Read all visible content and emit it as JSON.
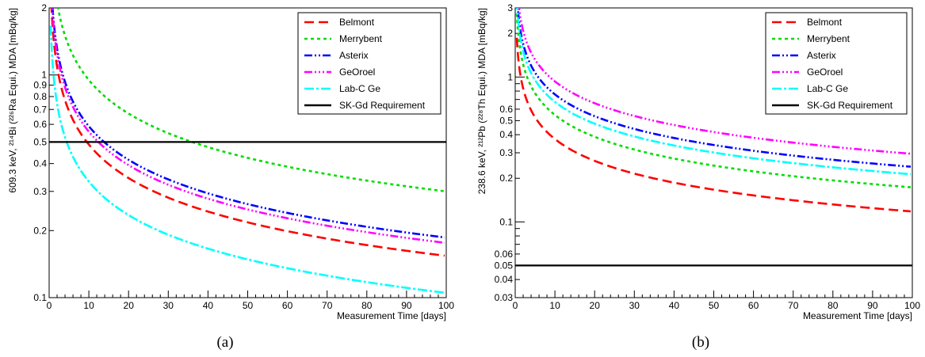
{
  "chart_data": [
    {
      "type": "line",
      "caption": "(a)",
      "xlabel": "Measurement Time [days]",
      "ylabel": "609.3 keV, ²¹⁴Bi (²²⁶Ra Equi.) MDA [mBq/kg]",
      "xlim": [
        0,
        100
      ],
      "ylim": [
        0.1,
        2
      ],
      "yscale": "log",
      "legend_position": "top-right",
      "x_ticks": [
        "0",
        "10",
        "20",
        "30",
        "40",
        "50",
        "60",
        "70",
        "80",
        "90",
        "100"
      ],
      "y_ticks": [
        {
          "value": 0.1,
          "label": "0.1"
        },
        {
          "value": 0.2,
          "label": "0.2"
        },
        {
          "value": 0.3,
          "label": "0.3"
        },
        {
          "value": 0.4,
          "label": "0.4"
        },
        {
          "value": 0.5,
          "label": "0.5"
        },
        {
          "value": 0.6,
          "label": "0.6"
        },
        {
          "value": 0.7,
          "label": "0.7"
        },
        {
          "value": 0.8,
          "label": "0.8"
        },
        {
          "value": 0.9,
          "label": "0.9"
        },
        {
          "value": 1,
          "label": "1"
        },
        {
          "value": 2,
          "label": "2"
        }
      ],
      "series": [
        {
          "name": "Belmont",
          "color": "#ff0000",
          "dash": "12,6",
          "x": [
            1,
            2,
            5,
            10,
            20,
            30,
            40,
            50,
            60,
            70,
            80,
            90,
            100
          ],
          "y": [
            1.54,
            1.09,
            0.69,
            0.49,
            0.345,
            0.28,
            0.245,
            0.22,
            0.2,
            0.185,
            0.172,
            0.162,
            0.154
          ]
        },
        {
          "name": "Merrybent",
          "color": "#00dd00",
          "dash": "4,4",
          "x": [
            1,
            2,
            5,
            10,
            20,
            30,
            40,
            50,
            60,
            70,
            80,
            90,
            100
          ],
          "y": [
            3.0,
            2.12,
            1.34,
            0.95,
            0.67,
            0.55,
            0.475,
            0.425,
            0.39,
            0.36,
            0.335,
            0.317,
            0.3
          ]
        },
        {
          "name": "Asterix",
          "color": "#0000ff",
          "dash": "10,3,2,3,2,3",
          "x": [
            1,
            2,
            5,
            10,
            20,
            30,
            40,
            50,
            60,
            70,
            80,
            90,
            100
          ],
          "y": [
            1.86,
            1.32,
            0.83,
            0.59,
            0.415,
            0.34,
            0.295,
            0.263,
            0.24,
            0.222,
            0.208,
            0.196,
            0.186
          ]
        },
        {
          "name": "GeOroel",
          "color": "#ff00ff",
          "dash": "10,3,2,3,2,3,2,3",
          "x": [
            1,
            2,
            5,
            10,
            20,
            30,
            40,
            50,
            60,
            70,
            80,
            90,
            100
          ],
          "y": [
            1.76,
            1.24,
            0.79,
            0.56,
            0.395,
            0.322,
            0.279,
            0.25,
            0.228,
            0.211,
            0.197,
            0.186,
            0.176
          ]
        },
        {
          "name": "Lab-C Ge",
          "color": "#00ffff",
          "dash": "12,3,3,3",
          "x": [
            1,
            2,
            5,
            10,
            20,
            30,
            40,
            50,
            60,
            70,
            80,
            90,
            100
          ],
          "y": [
            1.05,
            0.74,
            0.47,
            0.33,
            0.235,
            0.19,
            0.165,
            0.148,
            0.135,
            0.125,
            0.117,
            0.11,
            0.105
          ]
        },
        {
          "name": "SK-Gd Requirement",
          "color": "#000000",
          "dash": "",
          "x": [
            0,
            100
          ],
          "y": [
            0.5,
            0.5
          ]
        }
      ]
    },
    {
      "type": "line",
      "caption": "(b)",
      "xlabel": "Measurement Time [days]",
      "ylabel": "238.6 keV, ²¹²Pb (²²⁸Th Equi.) MDA [mBq/kg]",
      "xlim": [
        0,
        100
      ],
      "ylim": [
        0.03,
        3
      ],
      "yscale": "log",
      "legend_position": "top-right",
      "x_ticks": [
        "0",
        "10",
        "20",
        "30",
        "40",
        "50",
        "60",
        "70",
        "80",
        "90",
        "100"
      ],
      "y_ticks": [
        {
          "value": 0.03,
          "label": "0.03"
        },
        {
          "value": 0.04,
          "label": "0.04"
        },
        {
          "value": 0.05,
          "label": "0.05"
        },
        {
          "value": 0.06,
          "label": "0.06"
        },
        {
          "value": 0.1,
          "label": "0.1"
        },
        {
          "value": 0.2,
          "label": "0.2"
        },
        {
          "value": 0.3,
          "label": "0.3"
        },
        {
          "value": 0.4,
          "label": "0.4"
        },
        {
          "value": 0.5,
          "label": "0.5"
        },
        {
          "value": 0.6,
          "label": "0.6"
        },
        {
          "value": 1,
          "label": "1"
        },
        {
          "value": 2,
          "label": "2"
        },
        {
          "value": 3,
          "label": "3"
        }
      ],
      "series": [
        {
          "name": "Belmont",
          "color": "#ff0000",
          "dash": "12,6",
          "x": [
            1,
            2,
            5,
            10,
            20,
            30,
            40,
            50,
            60,
            70,
            80,
            90,
            100
          ],
          "y": [
            1.18,
            0.84,
            0.53,
            0.375,
            0.265,
            0.217,
            0.188,
            0.168,
            0.153,
            0.142,
            0.133,
            0.125,
            0.118
          ]
        },
        {
          "name": "Merrybent",
          "color": "#00dd00",
          "dash": "4,4",
          "x": [
            1,
            2,
            5,
            10,
            20,
            30,
            40,
            50,
            60,
            70,
            80,
            90,
            100
          ],
          "y": [
            1.73,
            1.22,
            0.775,
            0.548,
            0.388,
            0.316,
            0.274,
            0.245,
            0.224,
            0.207,
            0.194,
            0.183,
            0.173
          ]
        },
        {
          "name": "Asterix",
          "color": "#0000ff",
          "dash": "10,3,2,3,2,3",
          "x": [
            1,
            2,
            5,
            10,
            20,
            30,
            40,
            50,
            60,
            70,
            80,
            90,
            100
          ],
          "y": [
            2.4,
            1.7,
            1.07,
            0.76,
            0.537,
            0.438,
            0.38,
            0.34,
            0.31,
            0.287,
            0.268,
            0.253,
            0.24
          ]
        },
        {
          "name": "GeOroel",
          "color": "#ff00ff",
          "dash": "10,3,2,3,2,3,2,3",
          "x": [
            1,
            2,
            5,
            10,
            20,
            30,
            40,
            50,
            60,
            70,
            80,
            90,
            100
          ],
          "y": [
            2.95,
            2.09,
            1.32,
            0.935,
            0.66,
            0.54,
            0.467,
            0.418,
            0.381,
            0.353,
            0.33,
            0.311,
            0.295
          ]
        },
        {
          "name": "Lab-C Ge",
          "color": "#00ffff",
          "dash": "12,3,3,3",
          "x": [
            1,
            2,
            5,
            10,
            20,
            30,
            40,
            50,
            60,
            70,
            80,
            90,
            100
          ],
          "y": [
            2.13,
            1.51,
            0.953,
            0.674,
            0.477,
            0.389,
            0.337,
            0.302,
            0.275,
            0.255,
            0.238,
            0.225,
            0.213
          ]
        },
        {
          "name": "SK-Gd Requirement",
          "color": "#000000",
          "dash": "",
          "x": [
            0,
            100
          ],
          "y": [
            0.05,
            0.05
          ]
        }
      ]
    }
  ]
}
